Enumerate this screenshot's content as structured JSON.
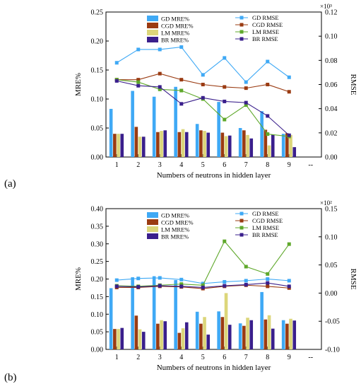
{
  "colors": {
    "GD": "#3fa9f5",
    "CGD": "#9a3b12",
    "LM": "#dcd67a",
    "BR": "#3a1f8c",
    "LM_line": "#5fa82b"
  },
  "chart_data": [
    {
      "panel_label": "(a)",
      "type": "bar+line",
      "xlabel": "Numbers of neutrons in hidden layer",
      "ylabel_left": "MRE%",
      "ylabel_right": "RMSE",
      "right_multiplier": "×10³",
      "x": [
        1,
        2,
        3,
        4,
        5,
        6,
        7,
        8,
        9
      ],
      "xtick_extra": "--",
      "ylim_left": [
        0,
        0.25
      ],
      "yticks_left": [
        "0.00",
        "0.05",
        "0.10",
        "0.15",
        "0.20",
        "0.25"
      ],
      "ylim_right": [
        0,
        0.12
      ],
      "yticks_right": [
        "0.00",
        "0.02",
        "0.04",
        "0.06",
        "0.08",
        "0.10",
        "0.12"
      ],
      "bar_series": [
        {
          "name": "GD MRE%",
          "key": "GD",
          "values": [
            0.083,
            0.114,
            0.104,
            0.121,
            0.057,
            0.095,
            0.05,
            0.079,
            0.04
          ]
        },
        {
          "name": "CGD MRE%",
          "key": "CGD",
          "values": [
            0.04,
            0.052,
            0.043,
            0.043,
            0.046,
            0.042,
            0.046,
            0.047,
            0.041
          ]
        },
        {
          "name": "LM MRE%",
          "key": "LM",
          "values": [
            0.04,
            0.035,
            0.045,
            0.048,
            0.045,
            0.036,
            0.038,
            0.02,
            0.038
          ]
        },
        {
          "name": "BR MRE%",
          "key": "BR",
          "values": [
            0.04,
            0.035,
            0.046,
            0.043,
            0.042,
            0.037,
            0.032,
            0.039,
            0.017
          ]
        }
      ],
      "line_series": [
        {
          "name": "GD RMSE",
          "key": "GD",
          "marker": "square",
          "values": [
            0.078,
            0.089,
            0.089,
            0.091,
            0.068,
            0.082,
            0.062,
            0.079,
            0.066
          ]
        },
        {
          "name": "CGD RMSE",
          "key": "CGD",
          "marker": "square",
          "values": [
            0.064,
            0.064,
            0.069,
            0.064,
            0.06,
            0.058,
            0.057,
            0.06,
            0.054
          ]
        },
        {
          "name": "LM RMSE",
          "key": "LM_line",
          "marker": "square",
          "values": [
            0.064,
            0.062,
            0.056,
            0.055,
            0.048,
            0.031,
            0.043,
            0.019,
            0.017
          ]
        },
        {
          "name": "BR RMSE",
          "key": "BR",
          "marker": "square",
          "values": [
            0.063,
            0.059,
            0.058,
            0.044,
            0.049,
            0.046,
            0.045,
            0.034,
            0.018
          ]
        }
      ],
      "legend_bars": "top-center",
      "legend_lines": "top-right"
    },
    {
      "panel_label": "(b)",
      "type": "bar+line",
      "xlabel": "Numbers of neutrons in hidden layer",
      "ylabel_left": "MRE%",
      "ylabel_right": "RMSE",
      "right_multiplier": "×10²",
      "x": [
        1,
        2,
        3,
        4,
        5,
        6,
        7,
        8,
        9
      ],
      "xtick_extra": "--",
      "ylim_left": [
        0,
        0.4
      ],
      "yticks_left": [
        "0.00",
        "0.05",
        "0.10",
        "0.15",
        "0.20",
        "0.25",
        "0.30",
        "0.35",
        "0.40"
      ],
      "ylim_right": [
        -0.1,
        0.15
      ],
      "yticks_right": [
        "-0.10",
        "-0.05",
        "0.00",
        "0.05",
        "0.10",
        "0.15"
      ],
      "bar_series": [
        {
          "name": "GD MRE%",
          "key": "GD",
          "values": [
            0.174,
            0.205,
            0.208,
            0.197,
            0.107,
            0.108,
            0.074,
            0.163,
            0.083
          ]
        },
        {
          "name": "CGD MRE%",
          "key": "CGD",
          "values": [
            0.058,
            0.096,
            0.073,
            0.047,
            0.073,
            0.092,
            0.067,
            0.085,
            0.073
          ]
        },
        {
          "name": "LM MRE%",
          "key": "LM",
          "values": [
            0.058,
            0.057,
            0.083,
            0.06,
            0.092,
            0.16,
            0.09,
            0.097,
            0.087
          ]
        },
        {
          "name": "BR MRE%",
          "key": "BR",
          "values": [
            0.061,
            0.05,
            0.08,
            0.077,
            0.042,
            0.07,
            0.083,
            0.059,
            0.082
          ]
        }
      ],
      "line_series": [
        {
          "name": "GD RMSE",
          "key": "GD",
          "marker": "square",
          "values": [
            0.023,
            0.026,
            0.027,
            0.024,
            0.017,
            0.02,
            0.022,
            0.025,
            0.022
          ]
        },
        {
          "name": "CGD RMSE",
          "key": "CGD",
          "marker": "square",
          "values": [
            0.01,
            0.01,
            0.012,
            0.011,
            0.008,
            0.012,
            0.014,
            0.012,
            0.009
          ]
        },
        {
          "name": "LM RMSE",
          "key": "LM_line",
          "marker": "square",
          "values": [
            0.013,
            0.012,
            0.014,
            0.016,
            0.014,
            0.092,
            0.047,
            0.034,
            0.087
          ]
        },
        {
          "name": "BR RMSE",
          "key": "BR",
          "marker": "square",
          "values": [
            0.012,
            0.011,
            0.013,
            0.012,
            0.01,
            0.013,
            0.015,
            0.018,
            0.012
          ]
        }
      ],
      "legend_bars": "top-center",
      "legend_lines": "top-right"
    }
  ]
}
